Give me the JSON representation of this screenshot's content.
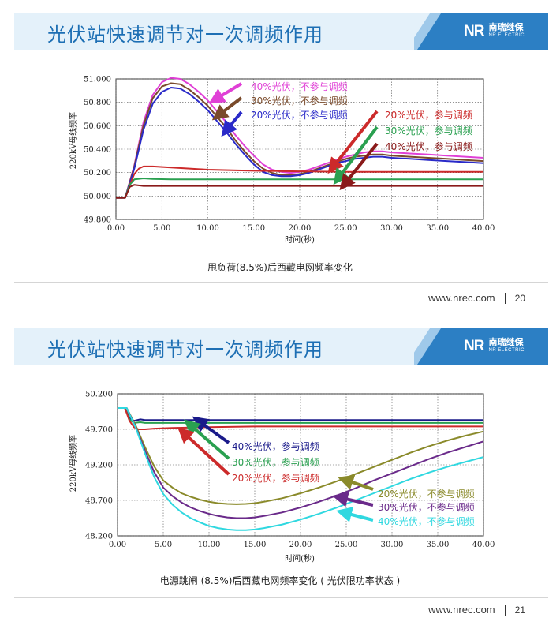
{
  "slides": [
    {
      "title": "光伏站快速调节对一次调频作用",
      "caption": "甩负荷(8.5%)后西藏电网频率变化",
      "website": "www.nrec.com",
      "page": "20",
      "logo": {
        "mark": "NR",
        "cn": "南瑞继保",
        "en": "NR ELECTRIC"
      }
    },
    {
      "title": "光伏站快速调节对一次调频作用",
      "caption": "电源跳闸 (8.5%)后西藏电网频率变化 ( 光伏限功率状态 )",
      "website": "www.nrec.com",
      "page": "21",
      "logo": {
        "mark": "NR",
        "cn": "南瑞继保",
        "en": "NR ELECTRIC"
      }
    }
  ],
  "chart_data": [
    {
      "type": "line",
      "xlabel": "时间(秒)",
      "ylabel": "220kV母线频率",
      "xlim": [
        0,
        40
      ],
      "ylim": [
        49.8,
        51.1
      ],
      "xticks": [
        "0.00",
        "5.00",
        "10.00",
        "15.00",
        "20.00",
        "25.00",
        "30.00",
        "35.00",
        "40.00"
      ],
      "yticks": [
        "49.800",
        "50.000",
        "50.200",
        "50.400",
        "50.600",
        "50.800",
        "51.000"
      ],
      "series": [
        {
          "name": "40%光伏，不参与调频",
          "color": "#e040d6",
          "x": [
            0,
            1,
            2,
            3,
            4,
            5,
            6,
            7,
            8,
            9,
            10,
            11,
            12,
            13,
            14,
            15,
            16,
            17,
            18,
            19,
            20,
            21,
            22,
            23,
            24,
            25,
            26,
            27,
            28,
            29,
            30,
            32,
            34,
            36,
            38,
            40
          ],
          "y": [
            50.0,
            50.0,
            50.3,
            50.7,
            50.95,
            51.07,
            51.11,
            51.1,
            51.05,
            50.98,
            50.9,
            50.8,
            50.7,
            50.58,
            50.48,
            50.39,
            50.31,
            50.26,
            50.24,
            50.23,
            50.24,
            50.26,
            50.29,
            50.32,
            50.35,
            50.38,
            50.4,
            50.42,
            50.43,
            50.43,
            50.42,
            50.41,
            50.4,
            50.39,
            50.38,
            50.37
          ]
        },
        {
          "name": "30%光伏，不参与调频",
          "color": "#7a4a2a",
          "x": [
            0,
            1,
            2,
            3,
            4,
            5,
            6,
            7,
            8,
            9,
            10,
            11,
            12,
            13,
            14,
            15,
            16,
            17,
            18,
            19,
            20,
            21,
            22,
            23,
            24,
            25,
            26,
            27,
            28,
            29,
            30,
            32,
            34,
            36,
            38,
            40
          ],
          "y": [
            50.0,
            50.0,
            50.29,
            50.67,
            50.92,
            51.03,
            51.06,
            51.05,
            51.0,
            50.93,
            50.85,
            50.75,
            50.65,
            50.53,
            50.43,
            50.34,
            50.27,
            50.23,
            50.21,
            50.21,
            50.22,
            50.24,
            50.27,
            50.3,
            50.33,
            50.36,
            50.38,
            50.39,
            50.4,
            50.4,
            50.39,
            50.38,
            50.37,
            50.36,
            50.35,
            50.34
          ]
        },
        {
          "name": "20%光伏，不参与调频",
          "color": "#2a2ac8",
          "x": [
            0,
            1,
            2,
            3,
            4,
            5,
            6,
            7,
            8,
            9,
            10,
            11,
            12,
            13,
            14,
            15,
            16,
            17,
            18,
            19,
            20,
            21,
            22,
            23,
            24,
            25,
            26,
            27,
            28,
            29,
            30,
            32,
            34,
            36,
            38,
            40
          ],
          "y": [
            50.0,
            50.0,
            50.27,
            50.63,
            50.87,
            50.98,
            51.02,
            51.01,
            50.96,
            50.89,
            50.81,
            50.71,
            50.61,
            50.5,
            50.4,
            50.31,
            50.24,
            50.21,
            50.2,
            50.2,
            50.21,
            50.23,
            50.26,
            50.29,
            50.32,
            50.34,
            50.36,
            50.37,
            50.38,
            50.38,
            50.37,
            50.36,
            50.35,
            50.34,
            50.33,
            50.32
          ]
        },
        {
          "name": "20%光伏，参与调频",
          "color": "#cc2a2a",
          "x": [
            0,
            1,
            1.5,
            2,
            2.5,
            3,
            4,
            6,
            8,
            10,
            15,
            20,
            25,
            30,
            35,
            40
          ],
          "y": [
            50.0,
            50.0,
            50.12,
            50.22,
            50.27,
            50.29,
            50.29,
            50.28,
            50.27,
            50.26,
            50.25,
            50.245,
            50.24,
            50.24,
            50.24,
            50.24
          ]
        },
        {
          "name": "30%光伏，参与调频",
          "color": "#2aa050",
          "x": [
            0,
            1,
            1.5,
            2,
            3,
            4,
            6,
            10,
            15,
            20,
            25,
            30,
            35,
            40
          ],
          "y": [
            50.0,
            50.0,
            50.12,
            50.17,
            50.18,
            50.175,
            50.17,
            50.17,
            50.17,
            50.17,
            50.17,
            50.17,
            50.17,
            50.17
          ]
        },
        {
          "name": "40%光伏，参与调频",
          "color": "#8a1a1a",
          "x": [
            0,
            1,
            1.5,
            2,
            3,
            4,
            6,
            10,
            20,
            30,
            40
          ],
          "y": [
            50.0,
            50.0,
            50.1,
            50.12,
            50.11,
            50.11,
            50.11,
            50.11,
            50.11,
            50.11,
            50.11
          ]
        }
      ]
    },
    {
      "type": "line",
      "xlabel": "时间(秒)",
      "ylabel": "220kV母线频率",
      "xlim": [
        0,
        40
      ],
      "ylim": [
        48.2,
        50.2
      ],
      "xticks": [
        "0.00",
        "5.00",
        "10.00",
        "15.00",
        "20.00",
        "25.00",
        "30.00",
        "35.00",
        "40.00"
      ],
      "yticks": [
        "48.200",
        "48.700",
        "49.200",
        "49.700",
        "50.200"
      ],
      "series": [
        {
          "name": "40%光伏，参与调频",
          "color": "#1a1a8a",
          "x": [
            0,
            0.8,
            1.3,
            1.8,
            2.5,
            3,
            5,
            10,
            20,
            30,
            40
          ],
          "y": [
            50.0,
            50.0,
            49.86,
            49.82,
            49.84,
            49.83,
            49.83,
            49.83,
            49.83,
            49.83,
            49.83
          ]
        },
        {
          "name": "30%光伏，参与调频",
          "color": "#2aa050",
          "x": [
            0,
            0.8,
            1.3,
            1.8,
            2.5,
            3,
            5,
            10,
            20,
            30,
            40
          ],
          "y": [
            50.0,
            50.0,
            49.84,
            49.79,
            49.8,
            49.79,
            49.79,
            49.79,
            49.79,
            49.79,
            49.79
          ]
        },
        {
          "name": "20%光伏，参与调频",
          "color": "#cc2a2a",
          "x": [
            0,
            0.8,
            1.3,
            1.8,
            2.3,
            3,
            4,
            6,
            10,
            15,
            20,
            30,
            40
          ],
          "y": [
            50.0,
            50.0,
            49.82,
            49.73,
            49.7,
            49.7,
            49.71,
            49.72,
            49.73,
            49.74,
            49.74,
            49.74,
            49.74
          ]
        },
        {
          "name": "20%光伏，不参与调频",
          "color": "#8a8a2a",
          "x": [
            0,
            1,
            2,
            3,
            4,
            5,
            6,
            7,
            8,
            9,
            10,
            11,
            12,
            13,
            14,
            15,
            16,
            18,
            20,
            22,
            24,
            26,
            28,
            30,
            32,
            34,
            36,
            38,
            40
          ],
          "y": [
            50.0,
            50.0,
            49.75,
            49.45,
            49.18,
            48.98,
            48.88,
            48.8,
            48.75,
            48.71,
            48.68,
            48.66,
            48.65,
            48.645,
            48.65,
            48.66,
            48.68,
            48.73,
            48.8,
            48.88,
            48.97,
            49.07,
            49.17,
            49.27,
            49.37,
            49.46,
            49.54,
            49.61,
            49.67
          ]
        },
        {
          "name": "30%光伏，不参与调频",
          "color": "#6a2a8a",
          "x": [
            0,
            1,
            2,
            3,
            4,
            5,
            6,
            7,
            8,
            9,
            10,
            11,
            12,
            13,
            14,
            15,
            16,
            18,
            20,
            22,
            24,
            26,
            28,
            30,
            32,
            34,
            36,
            38,
            40
          ],
          "y": [
            50.0,
            50.0,
            49.73,
            49.4,
            49.1,
            48.88,
            48.76,
            48.67,
            48.6,
            48.55,
            48.51,
            48.48,
            48.46,
            48.45,
            48.45,
            48.46,
            48.48,
            48.53,
            48.6,
            48.68,
            48.77,
            48.87,
            48.98,
            49.08,
            49.18,
            49.28,
            49.37,
            49.45,
            49.53
          ]
        },
        {
          "name": "40%光伏，不参与调频",
          "color": "#30d8e0",
          "x": [
            0,
            1,
            2,
            3,
            4,
            5,
            6,
            7,
            8,
            9,
            10,
            11,
            12,
            13,
            14,
            15,
            16,
            18,
            20,
            22,
            24,
            26,
            28,
            30,
            32,
            34,
            36,
            38,
            40
          ],
          "y": [
            50.0,
            50.0,
            49.72,
            49.36,
            49.03,
            48.79,
            48.64,
            48.53,
            48.45,
            48.39,
            48.34,
            48.31,
            48.29,
            48.28,
            48.28,
            48.29,
            48.31,
            48.36,
            48.43,
            48.51,
            48.6,
            48.7,
            48.8,
            48.9,
            49.0,
            49.09,
            49.17,
            49.24,
            49.31
          ]
        }
      ]
    }
  ]
}
